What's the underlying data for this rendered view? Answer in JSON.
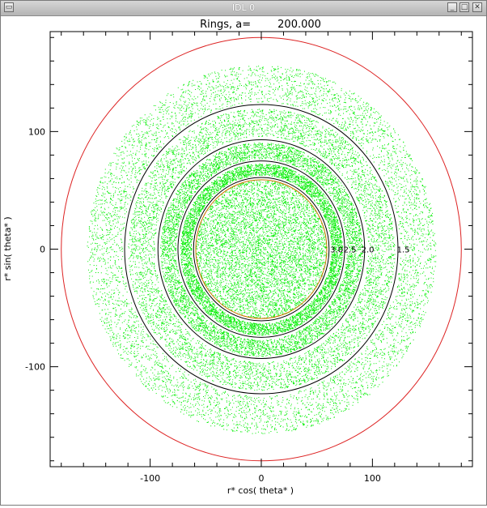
{
  "window": {
    "title": "IDL 0",
    "buttons": {
      "menu": "▭",
      "minimize": "_",
      "maximize": "□",
      "close": "✕"
    }
  },
  "colors": {
    "rings": "#00ee00",
    "circle_outer": "#dd2222",
    "circle_inner": "#cc7700",
    "boundaries": "#000000"
  },
  "chart_data": {
    "type": "scatter",
    "title": "Rings, a=        200.000",
    "xlabel": "r* cos( theta* )",
    "ylabel": "r* sin( theta* )",
    "xlim": [
      -190,
      190
    ],
    "ylim": [
      -185,
      185
    ],
    "xticks": [
      -100,
      0,
      100
    ],
    "yticks": [
      -100,
      0,
      100
    ],
    "grid": false,
    "rings": [
      {
        "r_inner": 0,
        "r_outer": 59,
        "density": 0.28
      },
      {
        "r_inner": 63,
        "r_outer": 73,
        "density": 1.0
      },
      {
        "r_inner": 77,
        "r_outer": 91,
        "density": 1.0
      },
      {
        "r_inner": 96,
        "r_outer": 120,
        "density": 1.0
      },
      {
        "r_inner": 125,
        "r_outer": 157,
        "density": 0.7
      }
    ],
    "circles": [
      {
        "r": 59,
        "color": "#cc7700"
      },
      {
        "r": 61,
        "color": "#000000"
      },
      {
        "r": 75,
        "color": "#000000"
      },
      {
        "r": 93,
        "color": "#000000"
      },
      {
        "r": 123,
        "color": "#000000"
      },
      {
        "r": 180,
        "color": "#dd2222"
      }
    ],
    "annotations": [
      {
        "text": "3.0",
        "x": 62,
        "y": 0
      },
      {
        "text": "2.5",
        "x": 74,
        "y": 0
      },
      {
        "text": "2.0",
        "x": 90,
        "y": 0
      },
      {
        "text": "1.5",
        "x": 122,
        "y": 0
      }
    ]
  }
}
